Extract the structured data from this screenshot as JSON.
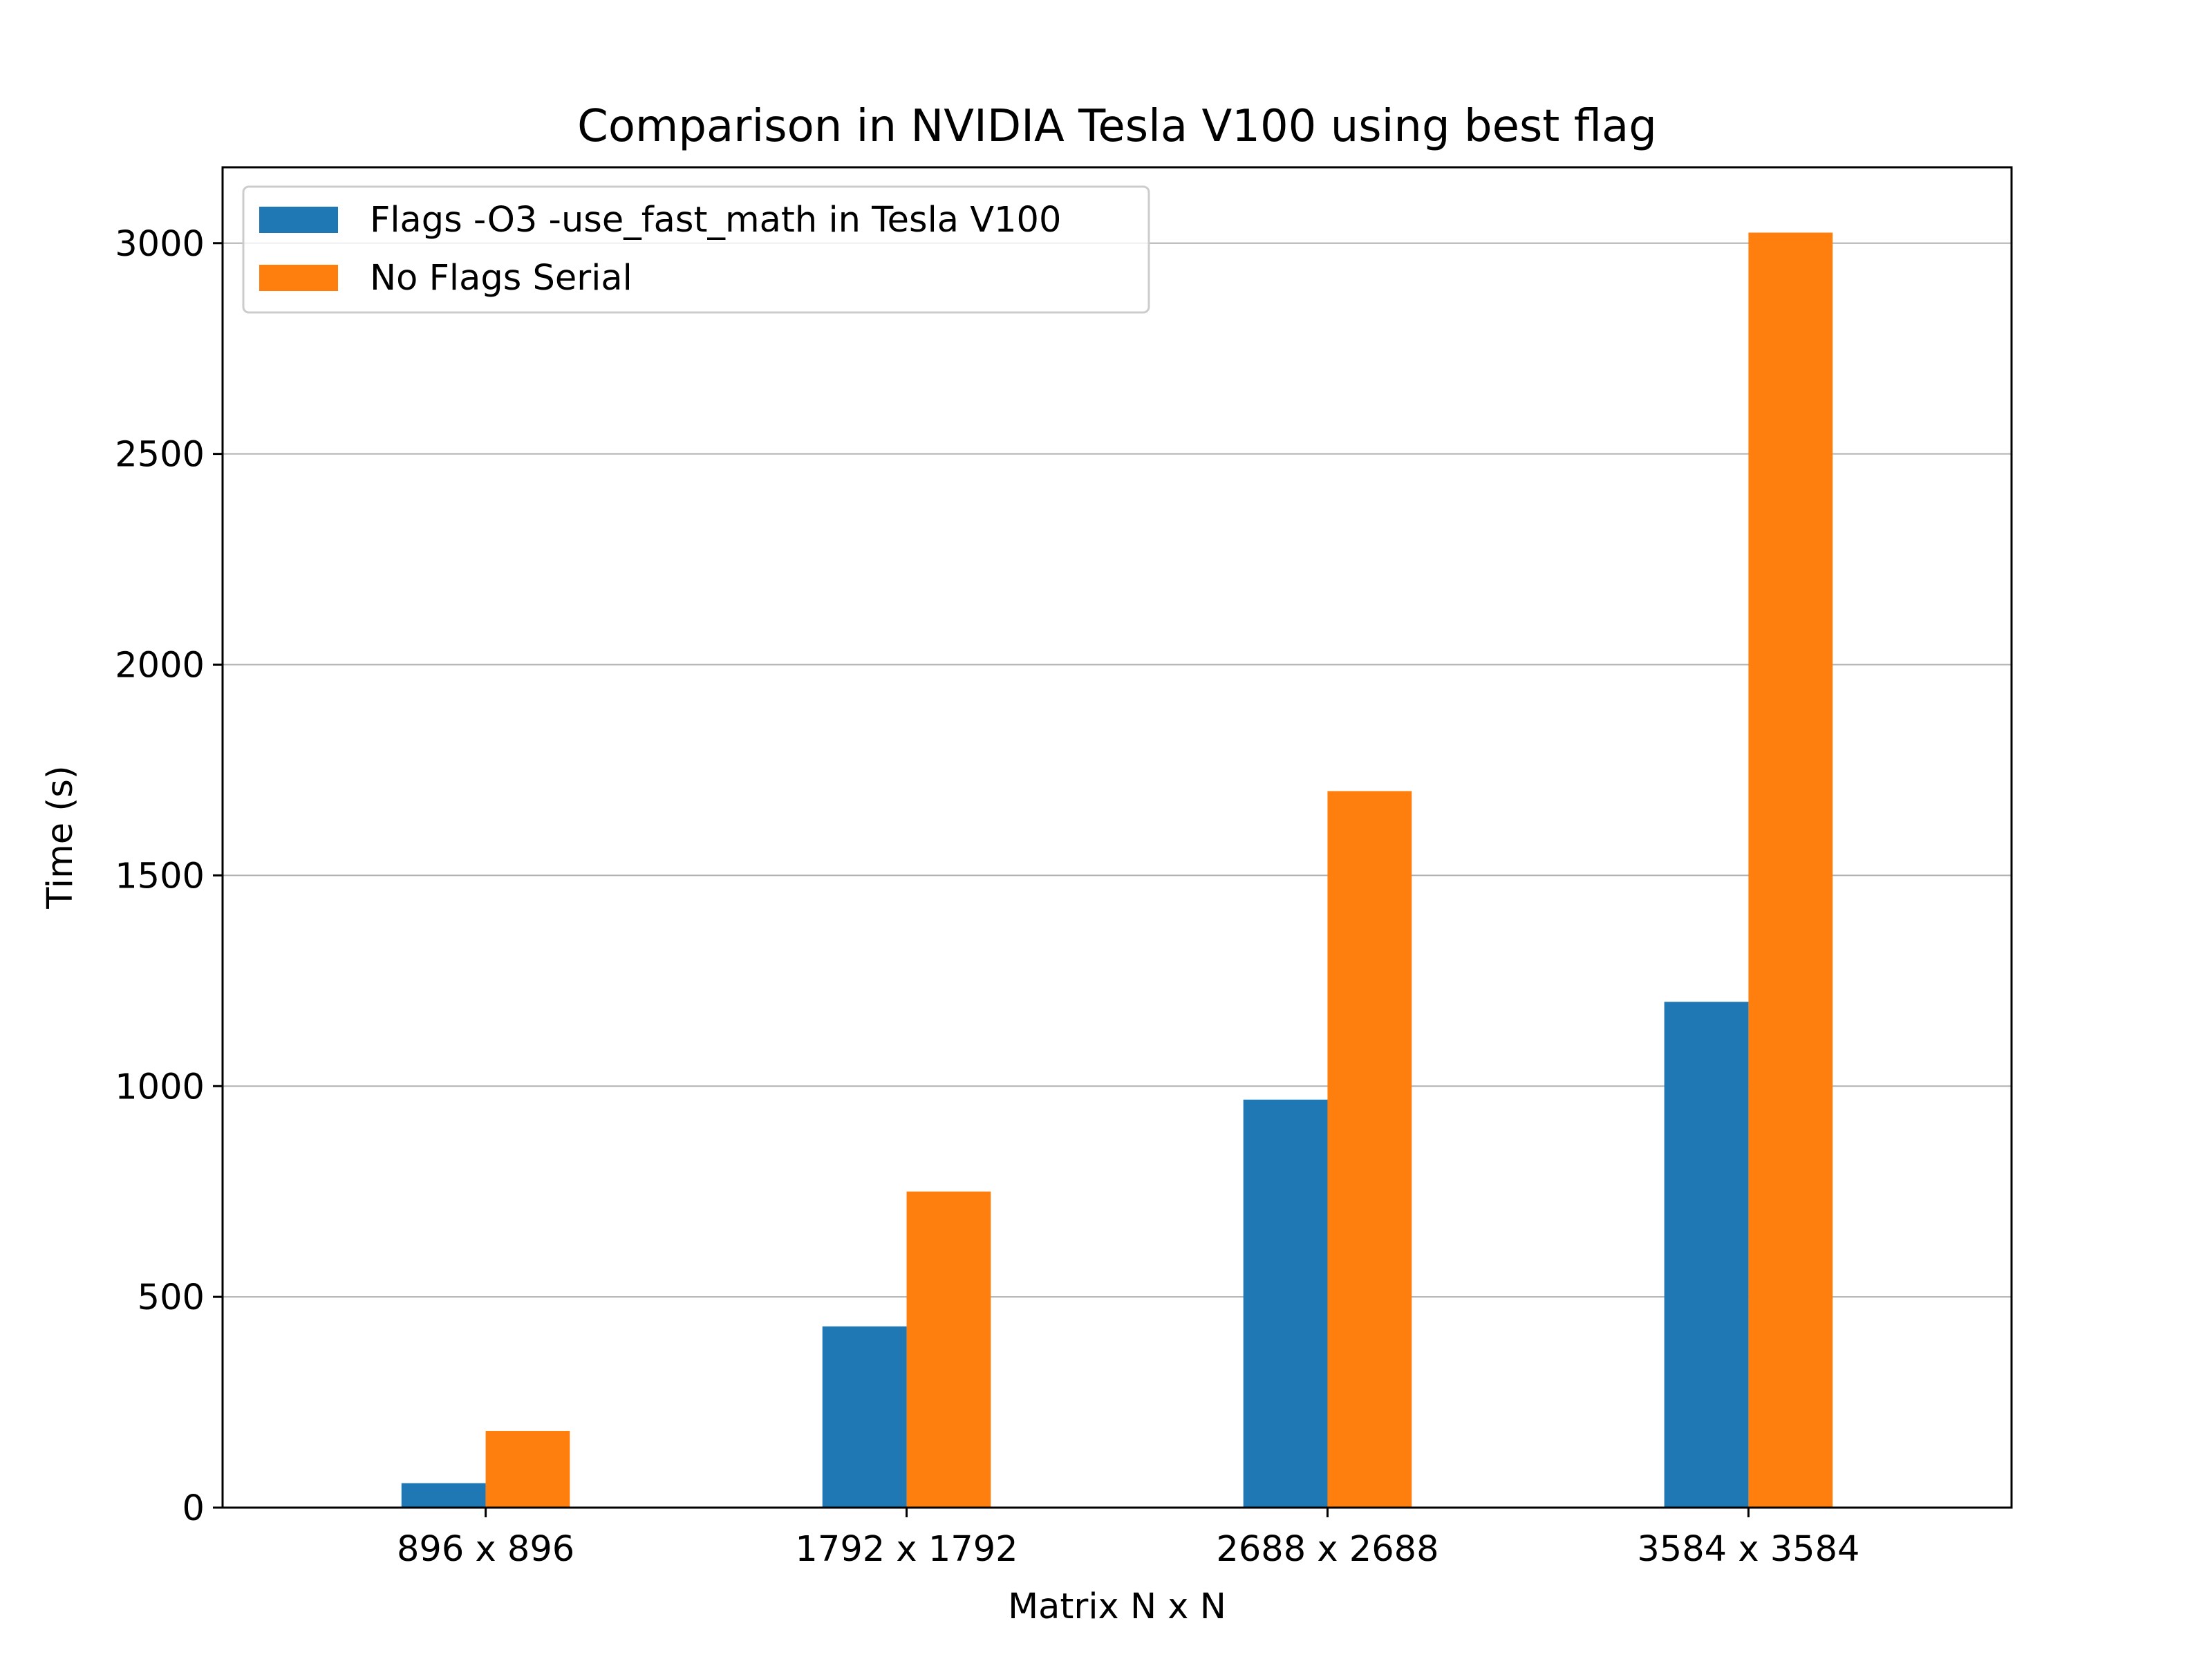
{
  "chart_data": {
    "type": "bar",
    "title": "Comparison in NVIDIA Tesla V100 using best flag",
    "xlabel": "Matrix N x N",
    "ylabel": "Time (s)",
    "categories": [
      "896 x 896",
      "1792 x 1792",
      "2688 x 2688",
      "3584 x 3584"
    ],
    "series": [
      {
        "name": "Flags -O3 -use_fast_math in Tesla V100",
        "color": "#1f77b4",
        "values": [
          58,
          430,
          968,
          1200
        ]
      },
      {
        "name": "No Flags Serial",
        "color": "#ff7f0e",
        "values": [
          182,
          750,
          1700,
          3025
        ]
      }
    ],
    "ylim": [
      0,
      3180
    ],
    "yticks": [
      0,
      500,
      1000,
      1500,
      2000,
      2500,
      3000
    ],
    "grid": "y",
    "legend_position": "top-left"
  }
}
